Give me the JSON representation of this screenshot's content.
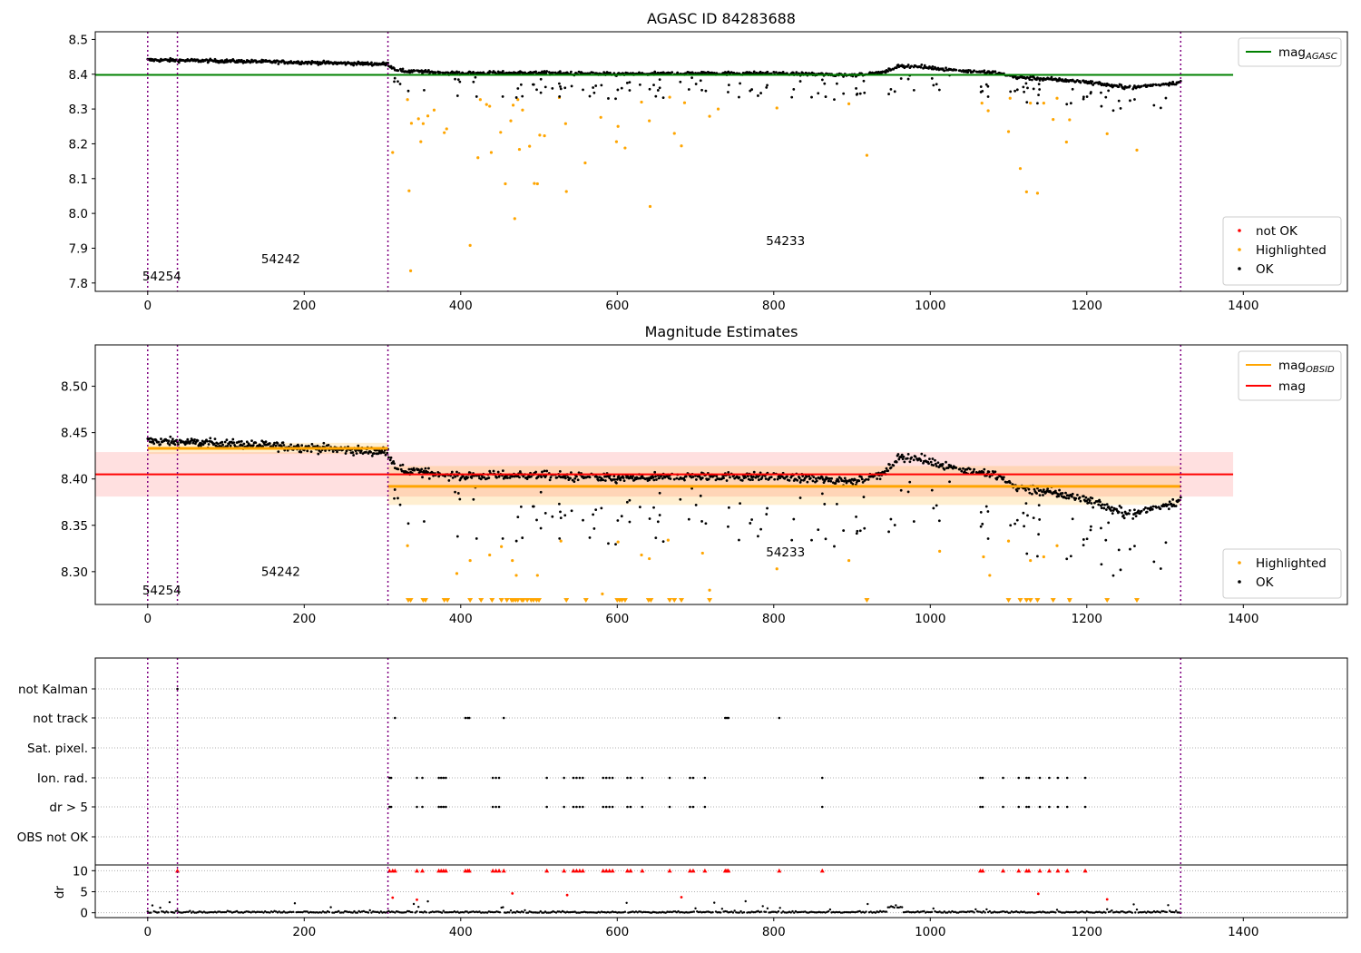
{
  "chart_data": [
    {
      "type": "scatter",
      "title": "AGASC ID 84283688",
      "xlim": [
        -67,
        1533
      ],
      "ylim": [
        7.776,
        8.522
      ],
      "xticks": [
        "0",
        "200",
        "400",
        "600",
        "800",
        "1000",
        "1200",
        "1400"
      ],
      "yticks": [
        "7.8",
        "7.9",
        "8.0",
        "8.1",
        "8.2",
        "8.3",
        "8.4",
        "8.5"
      ],
      "ref_line": {
        "label": "mag",
        "sub": "AGASC",
        "value": 8.398,
        "x_range": [
          -67,
          1387
        ],
        "color": "#008000"
      },
      "legend_lines": [
        {
          "label": "mag",
          "sub": "AGASC",
          "color": "#008000"
        }
      ],
      "legend_points": [
        {
          "label": "not OK",
          "color": "#ff0000"
        },
        {
          "label": "Highlighted",
          "color": "#ffa500"
        },
        {
          "label": "OK",
          "color": "#000000"
        }
      ],
      "obs_boundaries": [
        0,
        38,
        307,
        1320
      ],
      "obs_labels": [
        {
          "text": "54254",
          "x": 18,
          "y": 7.807
        },
        {
          "text": "54242",
          "x": 170,
          "y": 7.857
        },
        {
          "text": "54233",
          "x": 815,
          "y": 7.909
        }
      ],
      "highlighted_points": [
        [
          313,
          8.175
        ],
        [
          332,
          8.327
        ],
        [
          334,
          8.065
        ],
        [
          336,
          7.835
        ],
        [
          337,
          8.259
        ],
        [
          346,
          8.272
        ],
        [
          349,
          8.206
        ],
        [
          352,
          8.258
        ],
        [
          358,
          8.28
        ],
        [
          366,
          8.297
        ],
        [
          379,
          8.232
        ],
        [
          382,
          8.243
        ],
        [
          412,
          7.908
        ],
        [
          422,
          8.16
        ],
        [
          425,
          8.327
        ],
        [
          433,
          8.313
        ],
        [
          437,
          8.308
        ],
        [
          439,
          8.175
        ],
        [
          451,
          8.233
        ],
        [
          457,
          8.085
        ],
        [
          464,
          8.266
        ],
        [
          467,
          8.311
        ],
        [
          469,
          7.985
        ],
        [
          473,
          8.327
        ],
        [
          475,
          8.184
        ],
        [
          479,
          8.297
        ],
        [
          488,
          8.193
        ],
        [
          494,
          8.086
        ],
        [
          498,
          8.085
        ],
        [
          501,
          8.225
        ],
        [
          507,
          8.223
        ],
        [
          526,
          8.333
        ],
        [
          534,
          8.258
        ],
        [
          535,
          8.063
        ],
        [
          559,
          8.145
        ],
        [
          579,
          8.276
        ],
        [
          599,
          8.206
        ],
        [
          601,
          8.25
        ],
        [
          610,
          8.188
        ],
        [
          631,
          8.32
        ],
        [
          641,
          8.266
        ],
        [
          642,
          8.02
        ],
        [
          667,
          8.334
        ],
        [
          673,
          8.23
        ],
        [
          682,
          8.194
        ],
        [
          686,
          8.318
        ],
        [
          718,
          8.279
        ],
        [
          729,
          8.3
        ],
        [
          804,
          8.303
        ],
        [
          896,
          8.315
        ],
        [
          919,
          8.167
        ],
        [
          1066,
          8.317
        ],
        [
          1074,
          8.295
        ],
        [
          1100,
          8.235
        ],
        [
          1102,
          8.331
        ],
        [
          1115,
          8.129
        ],
        [
          1123,
          8.062
        ],
        [
          1128,
          8.317
        ],
        [
          1137,
          8.058
        ],
        [
          1145,
          8.317
        ],
        [
          1157,
          8.27
        ],
        [
          1162,
          8.331
        ],
        [
          1174,
          8.205
        ],
        [
          1178,
          8.269
        ],
        [
          1226,
          8.229
        ],
        [
          1264,
          8.182
        ]
      ],
      "ok_trend": [
        [
          0,
          8.441
        ],
        [
          100,
          8.438
        ],
        [
          200,
          8.434
        ],
        [
          307,
          8.429
        ],
        [
          320,
          8.41
        ],
        [
          400,
          8.403
        ],
        [
          500,
          8.404
        ],
        [
          600,
          8.4
        ],
        [
          700,
          8.403
        ],
        [
          800,
          8.402
        ],
        [
          900,
          8.398
        ],
        [
          940,
          8.405
        ],
        [
          960,
          8.424
        ],
        [
          1000,
          8.419
        ],
        [
          1040,
          8.41
        ],
        [
          1080,
          8.405
        ],
        [
          1110,
          8.391
        ],
        [
          1150,
          8.386
        ],
        [
          1200,
          8.378
        ],
        [
          1240,
          8.365
        ],
        [
          1260,
          8.362
        ],
        [
          1320,
          8.377
        ]
      ]
    },
    {
      "type": "scatter",
      "title": "Magnitude Estimates",
      "xlim": [
        -67,
        1533
      ],
      "ylim": [
        8.2646,
        8.5446
      ],
      "xticks": [
        "0",
        "200",
        "400",
        "600",
        "800",
        "1000",
        "1200",
        "1400"
      ],
      "yticks": [
        "8.30",
        "8.35",
        "8.40",
        "8.45",
        "8.50"
      ],
      "legend_lines": [
        {
          "label": "mag",
          "sub": "OBSID",
          "color": "#ffa500"
        },
        {
          "label": "mag",
          "sub": "",
          "color": "#ff0000"
        }
      ],
      "legend_points": [
        {
          "label": "Highlighted",
          "color": "#ffa500"
        },
        {
          "label": "OK",
          "color": "#000000"
        }
      ],
      "mag_line": {
        "value": 8.405,
        "band": [
          8.381,
          8.429
        ],
        "x_range": [
          -67,
          1387
        ],
        "color": "#ff0000"
      },
      "obsid_mags": [
        {
          "x_range": [
            0,
            307
          ],
          "value": 8.433,
          "band": [
            8.427,
            8.439
          ]
        },
        {
          "x_range": [
            307,
            1320
          ],
          "value": 8.392,
          "band": [
            8.372,
            8.414
          ]
        }
      ],
      "obs_boundaries": [
        0,
        38,
        307,
        1320
      ],
      "obs_labels": [
        {
          "text": "54254",
          "x": 18,
          "y": 8.2755
        },
        {
          "text": "54242",
          "x": 170,
          "y": 8.2954
        },
        {
          "text": "54233",
          "x": 815,
          "y": 8.3163
        }
      ],
      "highlighted_points": [
        [
          332,
          8.328
        ],
        [
          395,
          8.298
        ],
        [
          412,
          8.312
        ],
        [
          437,
          8.318
        ],
        [
          452,
          8.327
        ],
        [
          466,
          8.312
        ],
        [
          471,
          8.296
        ],
        [
          498,
          8.296
        ],
        [
          528,
          8.333
        ],
        [
          581,
          8.276
        ],
        [
          601,
          8.332
        ],
        [
          631,
          8.318
        ],
        [
          641,
          8.314
        ],
        [
          665,
          8.334
        ],
        [
          709,
          8.32
        ],
        [
          718,
          8.28
        ],
        [
          804,
          8.303
        ],
        [
          896,
          8.312
        ],
        [
          1012,
          8.322
        ],
        [
          1068,
          8.316
        ],
        [
          1076,
          8.296
        ],
        [
          1100,
          8.333
        ],
        [
          1128,
          8.312
        ],
        [
          1145,
          8.316
        ],
        [
          1162,
          8.328
        ],
        [
          1178,
          8.269
        ]
      ],
      "below_range_x": [
        333,
        336,
        352,
        355,
        379,
        383,
        412,
        426,
        440,
        452,
        459,
        465,
        467,
        470,
        473,
        478,
        480,
        485,
        490,
        493,
        497,
        500,
        535,
        560,
        600,
        603,
        606,
        610,
        640,
        643,
        667,
        673,
        682,
        718,
        919,
        1100,
        1115,
        1123,
        1128,
        1137,
        1157,
        1178,
        1226,
        1264
      ]
    },
    {
      "type": "scatter",
      "title": "",
      "xlim": [
        -67,
        1533
      ],
      "xticks": [
        "0",
        "200",
        "400",
        "600",
        "800",
        "1000",
        "1200",
        "1400"
      ],
      "flag_rows": [
        "not Kalman",
        "not track",
        "Sat. pixel.",
        "Ion. rad.",
        "dr > 5",
        "OBS not OK"
      ],
      "flags": {
        "not Kalman": [
          38
        ],
        "not track": [
          316,
          406,
          409,
          411,
          455,
          738,
          740,
          742,
          807
        ],
        "Sat. pixel.": [],
        "Ion. rad.": [
          309,
          311,
          344,
          351,
          372,
          375,
          378,
          381,
          441,
          445,
          449,
          510,
          532,
          544,
          548,
          552,
          556,
          582,
          586,
          590,
          594,
          613,
          617,
          632,
          667,
          693,
          697,
          712,
          862,
          1064,
          1067,
          1093,
          1113,
          1123,
          1126,
          1140,
          1152,
          1163,
          1175,
          1198
        ],
        "dr > 5": [
          309,
          311,
          344,
          351,
          372,
          375,
          378,
          381,
          441,
          445,
          449,
          510,
          532,
          544,
          548,
          552,
          556,
          582,
          586,
          590,
          594,
          613,
          617,
          632,
          667,
          693,
          697,
          712,
          862,
          1064,
          1067,
          1093,
          1113,
          1123,
          1126,
          1140,
          1152,
          1163,
          1175,
          1198
        ],
        "OBS not OK": []
      },
      "dr_axis": {
        "label": "dr",
        "yticks": [
          "0",
          "5",
          "10"
        ],
        "ylim": [
          -0.5,
          10.5
        ]
      },
      "dr_capped_x": [
        38,
        309,
        313,
        316,
        344,
        351,
        372,
        375,
        378,
        381,
        406,
        409,
        411,
        441,
        445,
        449,
        455,
        510,
        532,
        544,
        548,
        552,
        556,
        582,
        586,
        590,
        594,
        613,
        617,
        632,
        667,
        693,
        697,
        712,
        738,
        740,
        742,
        807,
        862,
        1064,
        1067,
        1093,
        1113,
        1123,
        1126,
        1140,
        1152,
        1163,
        1175,
        1198
      ],
      "dr_red_points": [
        [
          313,
          3.6
        ],
        [
          344,
          3.1
        ],
        [
          466,
          4.6
        ],
        [
          536,
          4.2
        ],
        [
          682,
          3.7
        ],
        [
          1138,
          4.5
        ],
        [
          1226,
          3.2
        ]
      ],
      "obs_boundaries": [
        0,
        38,
        307,
        1320
      ]
    }
  ]
}
